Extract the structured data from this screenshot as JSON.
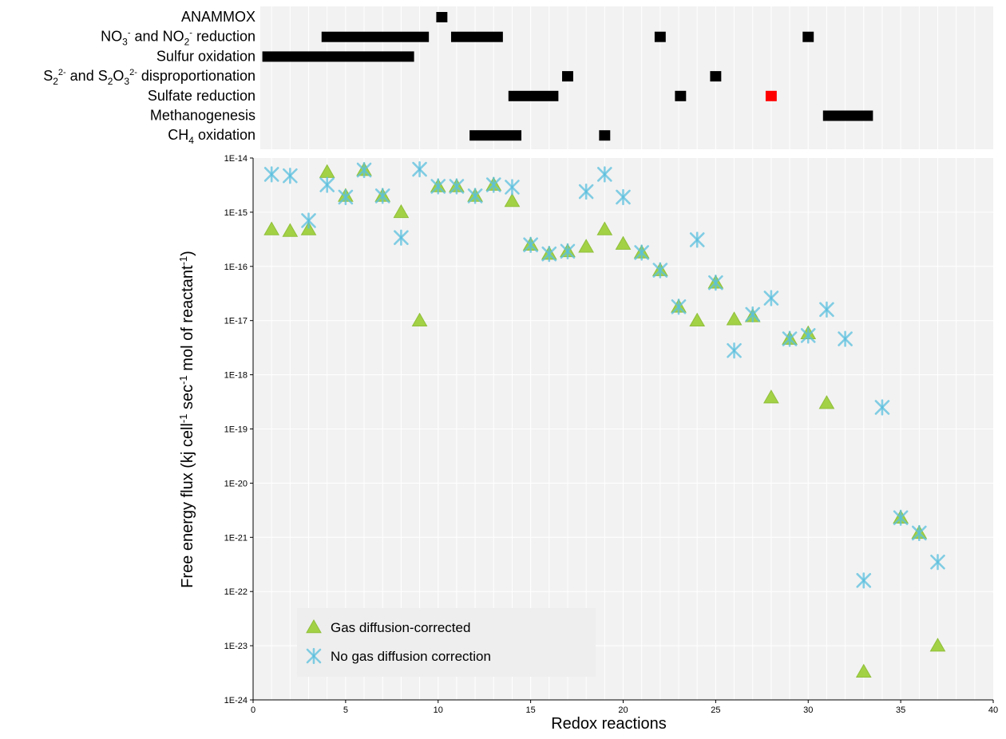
{
  "chart_data": [
    {
      "type": "gantt",
      "xlim": [
        0,
        40
      ],
      "categories": [
        {
          "name": "ANAMMOX",
          "html": "ANAMMOX",
          "color": "#000000",
          "segments": [
            [
              9.9,
              10.5
            ]
          ]
        },
        {
          "name": "NO3- and NO2- reduction",
          "html": "NO<tspan font-size='12' dy='5'>3</tspan><tspan font-size='11' dy='-12'>-</tspan><tspan dy='7'> and NO</tspan><tspan font-size='12' dy='5'>2</tspan><tspan font-size='11' dy='-12'>-</tspan><tspan dy='7'> reduction</tspan>",
          "color": "#000000",
          "segments": [
            [
              3.7,
              9.5
            ],
            [
              10.7,
              13.5
            ],
            [
              21.7,
              22.3
            ],
            [
              29.7,
              30.3
            ]
          ]
        },
        {
          "name": "Sulfur oxidation",
          "html": "Sulfur oxidation",
          "color": "#000000",
          "segments": [
            [
              0.5,
              8.7
            ]
          ]
        },
        {
          "name": "S22- and S2O32- disproportionation",
          "html": "S<tspan font-size='12' dy='5'>2</tspan><tspan font-size='11' dy='-12'>2-</tspan><tspan dy='7'> and S</tspan><tspan font-size='12' dy='5'>2</tspan><tspan dy='-5'>O</tspan><tspan font-size='12' dy='5'>3</tspan><tspan font-size='11' dy='-12'>2-</tspan><tspan dy='7'> disproportionation</tspan>",
          "color": "#000000",
          "segments": [
            [
              16.7,
              17.3
            ],
            [
              24.7,
              25.3
            ]
          ]
        },
        {
          "name": "Sulfate reduction",
          "html": "Sulfate reduction",
          "color": "#000000",
          "segments": [
            [
              13.8,
              16.5
            ],
            [
              22.8,
              23.4
            ],
            [
              27.7,
              28.3,
              "#ff0000"
            ]
          ]
        },
        {
          "name": "Methanogenesis",
          "html": "Methanogenesis",
          "color": "#000000",
          "segments": [
            [
              30.8,
              33.5
            ]
          ]
        },
        {
          "name": "CH4 oxidation",
          "html": "CH<tspan font-size='12' dy='5'>4</tspan><tspan dy='-5'> oxidation</tspan>",
          "color": "#000000",
          "segments": [
            [
              11.7,
              14.5
            ],
            [
              18.7,
              19.3
            ]
          ]
        }
      ]
    },
    {
      "type": "scatter",
      "xlabel": "Redox reactions",
      "ylabel": "Free energy flux (kj cell",
      "ylabel_parts": [
        "Free energy flux (kj cell",
        "-1",
        " sec",
        "-1",
        " mol of reactant",
        "-1",
        ")"
      ],
      "xlim": [
        0,
        40
      ],
      "xticks": [
        0,
        5,
        10,
        15,
        20,
        25,
        30,
        35,
        40
      ],
      "yscale": "log",
      "ylim_exp": [
        -24,
        -14
      ],
      "yticks": [
        "1E-24",
        "1E-23",
        "1E-22",
        "1E-21",
        "1E-20",
        "1E-19",
        "1E-18",
        "1E-17",
        "1E-16",
        "1E-15",
        "1E-14"
      ],
      "grid": true,
      "legend_position": "bottom-left",
      "series": [
        {
          "name": "Gas diffusion-corrected",
          "marker": "triangle",
          "color": "#9acd32",
          "points": [
            [
              1,
              4.8e-16
            ],
            [
              2,
              4.5e-16
            ],
            [
              3,
              4.8e-16
            ],
            [
              4,
              5.5e-15
            ],
            [
              5,
              2e-15
            ],
            [
              6,
              6e-15
            ],
            [
              7,
              2e-15
            ],
            [
              8,
              1e-15
            ],
            [
              9,
              1e-17
            ],
            [
              10,
              3e-15
            ],
            [
              11,
              3e-15
            ],
            [
              12,
              2e-15
            ],
            [
              13,
              3.2e-15
            ],
            [
              14,
              1.6e-15
            ],
            [
              15,
              2.5e-16
            ],
            [
              16,
              1.7e-16
            ],
            [
              17,
              1.9e-16
            ],
            [
              18,
              2.3e-16
            ],
            [
              19,
              4.8e-16
            ],
            [
              20,
              2.6e-16
            ],
            [
              21,
              1.8e-16
            ],
            [
              22,
              8.5e-17
            ],
            [
              23,
              1.8e-17
            ],
            [
              24,
              1e-17
            ],
            [
              25,
              5e-17
            ],
            [
              26,
              1.05e-17
            ],
            [
              27,
              1.2e-17
            ],
            [
              28,
              3.8e-19
            ],
            [
              29,
              4.6e-18
            ],
            [
              30,
              5.8e-18
            ],
            [
              31,
              3e-19
            ],
            [
              33,
              3.3e-24
            ],
            [
              35,
              2.3e-21
            ],
            [
              36,
              1.2e-21
            ],
            [
              37,
              1e-23
            ]
          ]
        },
        {
          "name": "No gas diffusion correction",
          "marker": "asterisk",
          "color": "#5bc0de",
          "points": [
            [
              1,
              5e-15
            ],
            [
              2,
              4.7e-15
            ],
            [
              3,
              7e-16
            ],
            [
              4,
              3.2e-15
            ],
            [
              5,
              1.9e-15
            ],
            [
              6,
              6e-15
            ],
            [
              7,
              2e-15
            ],
            [
              8,
              3.4e-16
            ],
            [
              9,
              6.2e-15
            ],
            [
              10,
              3e-15
            ],
            [
              11,
              3e-15
            ],
            [
              12,
              2e-15
            ],
            [
              13,
              3.2e-15
            ],
            [
              14,
              2.9e-15
            ],
            [
              15,
              2.5e-16
            ],
            [
              16,
              1.7e-16
            ],
            [
              17,
              1.9e-16
            ],
            [
              18,
              2.4e-15
            ],
            [
              19,
              5e-15
            ],
            [
              20,
              1.9e-15
            ],
            [
              21,
              1.8e-16
            ],
            [
              22,
              8.5e-17
            ],
            [
              23,
              1.8e-17
            ],
            [
              24,
              3.1e-16
            ],
            [
              25,
              5e-17
            ],
            [
              26,
              2.8e-18
            ],
            [
              27,
              1.3e-17
            ],
            [
              28,
              2.6e-17
            ],
            [
              29,
              4.6e-18
            ],
            [
              30,
              5.3e-18
            ],
            [
              31,
              1.6e-17
            ],
            [
              32,
              4.6e-18
            ],
            [
              33,
              1.6e-22
            ],
            [
              34,
              2.5e-19
            ],
            [
              35,
              2.3e-21
            ],
            [
              36,
              1.2e-21
            ],
            [
              37,
              3.5e-22
            ]
          ]
        }
      ]
    }
  ]
}
